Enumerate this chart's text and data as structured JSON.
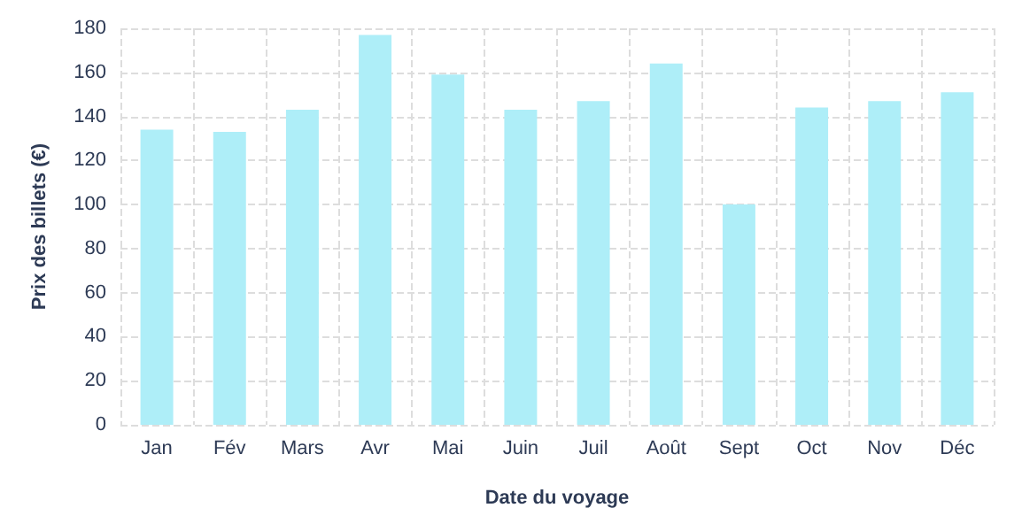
{
  "chart_data": {
    "type": "bar",
    "xlabel": "Date du voyage",
    "ylabel": "Prix des billets (€)",
    "categories": [
      "Jan",
      "Fév",
      "Mars",
      "Avr",
      "Mai",
      "Juin",
      "Juil",
      "Août",
      "Sept",
      "Oct",
      "Nov",
      "Déc"
    ],
    "values": [
      134,
      133,
      143,
      177,
      159,
      143,
      147,
      164,
      100,
      144,
      147,
      151
    ],
    "color": "#aeeef8",
    "ylim": [
      0,
      180
    ],
    "yticks": [
      0,
      20,
      40,
      60,
      80,
      100,
      120,
      140,
      160,
      180
    ],
    "grid": true
  }
}
